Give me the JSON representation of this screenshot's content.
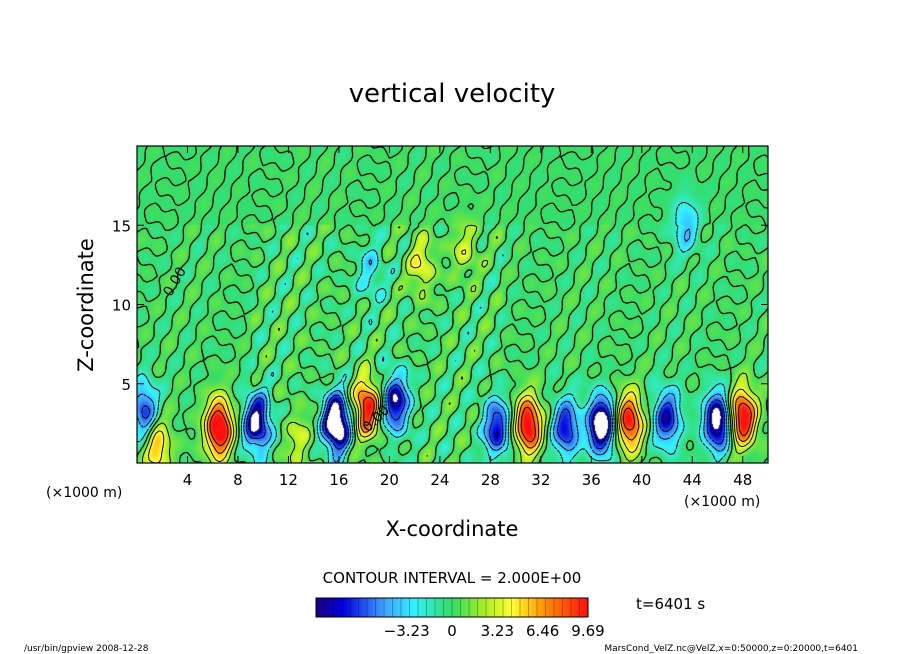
{
  "chart_data": {
    "type": "heatmap",
    "title": "vertical velocity",
    "xlabel": "X-coordinate",
    "ylabel": "Z-coordinate",
    "x_unit_left": "(×1000 m)",
    "x_unit_right": "(×1000 m)",
    "xlim": [
      0,
      50
    ],
    "ylim": [
      0,
      20
    ],
    "x_ticks": [
      4,
      8,
      12,
      16,
      20,
      24,
      28,
      32,
      36,
      40,
      44,
      48
    ],
    "y_ticks": [
      5,
      10,
      15
    ],
    "contour_interval_text": "CONTOUR INTERVAL = 2.000E+00",
    "contour_labels": [
      {
        "text": "0.00",
        "x": 3.3,
        "y": 11.3,
        "angle": -60
      },
      {
        "text": "0.00",
        "x": 19.2,
        "y": 2.6,
        "angle": -45
      }
    ],
    "time_text": "t=6401 s",
    "colorbar": {
      "min": -9.69,
      "max": 9.69,
      "ticks": [
        -3.23,
        0,
        3.23,
        6.46,
        9.69
      ],
      "tick_labels": [
        "−3.23",
        "0",
        "3.23",
        "6.46",
        "9.69"
      ]
    },
    "features": [
      {
        "x": 6.5,
        "z": 2.2,
        "w": 12
      },
      {
        "x": 18.2,
        "z": 3.5,
        "w": 10
      },
      {
        "x": 31.0,
        "z": 2.4,
        "w": 11
      },
      {
        "x": 39.0,
        "z": 2.6,
        "w": 10
      },
      {
        "x": 48.0,
        "z": 2.9,
        "w": 11
      },
      {
        "x": 1.6,
        "z": 1.0,
        "w": 6
      },
      {
        "x": 12.8,
        "z": 1.4,
        "w": 3
      },
      {
        "x": 22.5,
        "z": 12.5,
        "w": 4
      },
      {
        "x": 26.0,
        "z": 13.5,
        "w": 3
      },
      {
        "x": 9.5,
        "z": 2.5,
        "w": -10
      },
      {
        "x": 15.8,
        "z": 2.5,
        "w": -13
      },
      {
        "x": 20.5,
        "z": 3.8,
        "w": -9
      },
      {
        "x": 28.5,
        "z": 2.2,
        "w": -8
      },
      {
        "x": 34.0,
        "z": 2.2,
        "w": -8
      },
      {
        "x": 36.8,
        "z": 2.4,
        "w": -12
      },
      {
        "x": 42.0,
        "z": 2.8,
        "w": -8
      },
      {
        "x": 46.0,
        "z": 2.6,
        "w": -11
      },
      {
        "x": 0.6,
        "z": 3.3,
        "w": -7
      },
      {
        "x": 43.5,
        "z": 15.0,
        "w": -4
      },
      {
        "x": 18.5,
        "z": 12.0,
        "w": -3
      }
    ]
  },
  "footer": {
    "left": "/usr/bin/gpview   2008-12-28",
    "right": "MarsCond_VelZ.nc@VelZ,x=0:50000,z=0:20000,t=6401"
  }
}
